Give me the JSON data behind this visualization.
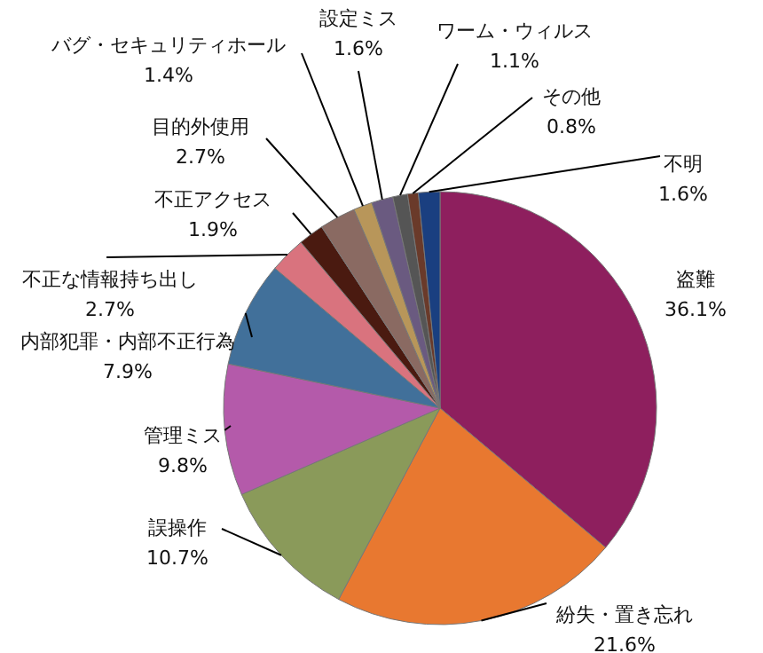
{
  "chart_data": {
    "type": "pie",
    "categories": [
      "盗難",
      "紛失・置き忘れ",
      "誤操作",
      "管理ミス",
      "内部犯罪・内部不正行為",
      "不正な情報持ち出し",
      "不正アクセス",
      "目的外使用",
      "バグ・セキュリティホール",
      "設定ミス",
      "ワーム・ウィルス",
      "その他",
      "不明"
    ],
    "values": [
      36.1,
      21.6,
      10.7,
      9.8,
      7.9,
      2.7,
      1.9,
      2.7,
      1.4,
      1.6,
      1.1,
      0.8,
      1.6
    ],
    "value_labels": [
      "36.1%",
      "21.6%",
      "10.7%",
      "9.8%",
      "7.9%",
      "2.7%",
      "1.9%",
      "2.7%",
      "1.4%",
      "1.6%",
      "1.1%",
      "0.8%",
      "1.6%"
    ],
    "colors": [
      "#8e1f5e",
      "#e87830",
      "#8a9a5a",
      "#b45aaa",
      "#41709a",
      "#d9737e",
      "#4a1a10",
      "#8a6a62",
      "#b8965a",
      "#6a5a80",
      "#555555",
      "#6a3a2a",
      "#1a3f80"
    ]
  }
}
